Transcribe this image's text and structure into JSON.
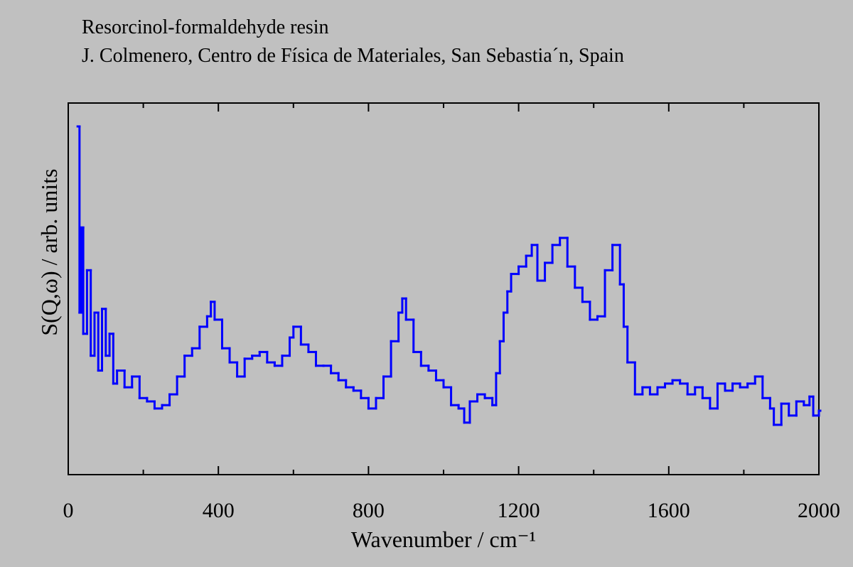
{
  "chart_data": {
    "type": "line",
    "step": "post",
    "title": "Resorcinol-formaldehyde resin",
    "subtitle": "J. Colmenero, Centro de Física de Materiales, San Sebastia´n, Spain",
    "xlabel": "Wavenumber / cm⁻¹",
    "ylabel": "S(Q,ω) / arb. units",
    "xlim": [
      0,
      2000
    ],
    "ylim": [
      0,
      100
    ],
    "xticks": [
      0,
      400,
      800,
      1200,
      1600,
      2000
    ],
    "xminor_ticks": [
      200,
      600,
      1000,
      1400,
      1800
    ],
    "grid": false,
    "x": [
      25,
      30,
      35,
      40,
      50,
      60,
      70,
      80,
      90,
      100,
      110,
      120,
      130,
      150,
      170,
      190,
      210,
      230,
      250,
      270,
      290,
      310,
      330,
      350,
      370,
      380,
      390,
      410,
      430,
      450,
      470,
      490,
      510,
      530,
      550,
      570,
      590,
      600,
      620,
      640,
      660,
      680,
      700,
      720,
      740,
      760,
      780,
      800,
      820,
      840,
      860,
      880,
      890,
      900,
      920,
      940,
      960,
      980,
      1000,
      1020,
      1040,
      1055,
      1070,
      1090,
      1110,
      1130,
      1140,
      1150,
      1160,
      1170,
      1180,
      1200,
      1220,
      1235,
      1250,
      1270,
      1290,
      1310,
      1330,
      1350,
      1370,
      1390,
      1410,
      1430,
      1450,
      1470,
      1480,
      1490,
      1510,
      1530,
      1550,
      1570,
      1590,
      1610,
      1630,
      1650,
      1670,
      1690,
      1710,
      1730,
      1750,
      1770,
      1790,
      1810,
      1830,
      1850,
      1870,
      1880,
      1900,
      1920,
      1940,
      1960,
      1975,
      1985,
      2000
    ],
    "series": [
      {
        "name": "S(Q,ω)",
        "color": "#0000ff",
        "values": [
          93.7,
          43.6,
          66.5,
          37.9,
          55,
          32,
          43.6,
          28,
          44.6,
          32,
          37.9,
          24.5,
          28,
          23.5,
          26.4,
          20.6,
          19.7,
          17.8,
          18.7,
          21.6,
          26.4,
          32,
          34,
          39.8,
          42.6,
          46.5,
          41.7,
          34,
          30.2,
          26.4,
          31.2,
          32,
          33,
          30.2,
          29.3,
          32,
          36.9,
          39.8,
          35,
          33,
          29.3,
          29.3,
          27.3,
          25.4,
          23.5,
          22.6,
          20.6,
          17.8,
          20.6,
          26.4,
          35.9,
          43.6,
          47.4,
          41.7,
          33,
          29.3,
          28,
          25.4,
          23.5,
          18.7,
          17.8,
          14,
          19.7,
          21.6,
          20.6,
          18.7,
          27.3,
          35.9,
          43.6,
          49.3,
          54,
          56,
          58.9,
          61.8,
          52.2,
          57,
          61.8,
          63.7,
          56,
          50.3,
          46.5,
          41.7,
          42.6,
          55,
          61.8,
          51.2,
          39.8,
          30.2,
          21.6,
          23.5,
          21.6,
          23.5,
          24.5,
          25.4,
          24.5,
          21.6,
          23.5,
          20.6,
          17.8,
          24.5,
          22.6,
          24.5,
          23.5,
          24.5,
          26.4,
          20.6,
          17.8,
          13.4,
          19.1,
          15.9,
          19.7,
          18.7,
          21,
          15.9,
          17.2
        ]
      }
    ]
  }
}
